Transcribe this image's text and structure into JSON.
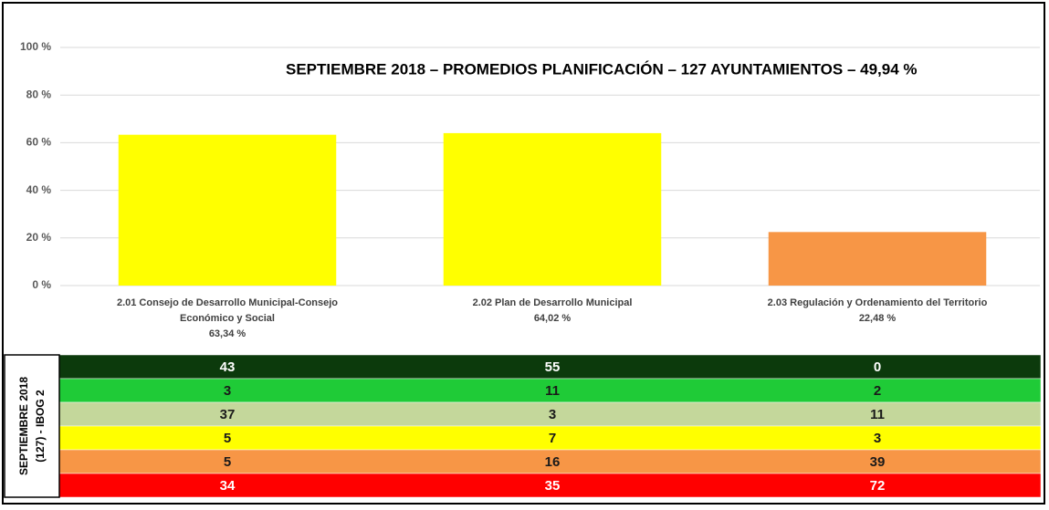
{
  "chart_data": {
    "type": "bar",
    "title": "SEPTIEMBRE 2018 – PROMEDIOS PLANIFICACIÓN – 127 AYUNTAMIENTOS – 49,94 %",
    "categories": [
      "2.01 Consejo de Desarrollo Municipal-Consejo Económico y Social",
      "2.02 Plan de Desarrollo Municipal",
      "2.03 Regulación y Ordenamiento del Territorio"
    ],
    "values": [
      63.34,
      64.02,
      22.48
    ],
    "value_labels": [
      "63,34 %",
      "64,02 %",
      "22,48 %"
    ],
    "colors": [
      "#ffff00",
      "#ffff00",
      "#f79646"
    ],
    "ylim": [
      0,
      100
    ],
    "yticks": [
      {
        "value": 0,
        "label": "0 %"
      },
      {
        "value": 20,
        "label": "20 %"
      },
      {
        "value": 40,
        "label": "40 %"
      },
      {
        "value": 60,
        "label": "60 %"
      },
      {
        "value": 80,
        "label": "80 %"
      },
      {
        "value": 100,
        "label": "100 %"
      }
    ],
    "grid": true
  },
  "table": {
    "label": [
      "SEPTIEMBRE 2018",
      "(127) - IBOG 2"
    ],
    "rows": [
      {
        "color": "#0c3a0c",
        "text_color": "#ffffff",
        "values": [
          43,
          55,
          0
        ]
      },
      {
        "color": "#1fcb37",
        "text_color": "#1a1a1a",
        "values": [
          3,
          11,
          2
        ]
      },
      {
        "color": "#c4d79b",
        "text_color": "#1a1a1a",
        "values": [
          37,
          3,
          11
        ]
      },
      {
        "color": "#ffff00",
        "text_color": "#1a1a1a",
        "values": [
          5,
          7,
          3
        ]
      },
      {
        "color": "#f79646",
        "text_color": "#1a1a1a",
        "values": [
          5,
          16,
          39
        ]
      },
      {
        "color": "#ff0000",
        "text_color": "#ffffff",
        "values": [
          34,
          35,
          72
        ]
      }
    ]
  }
}
